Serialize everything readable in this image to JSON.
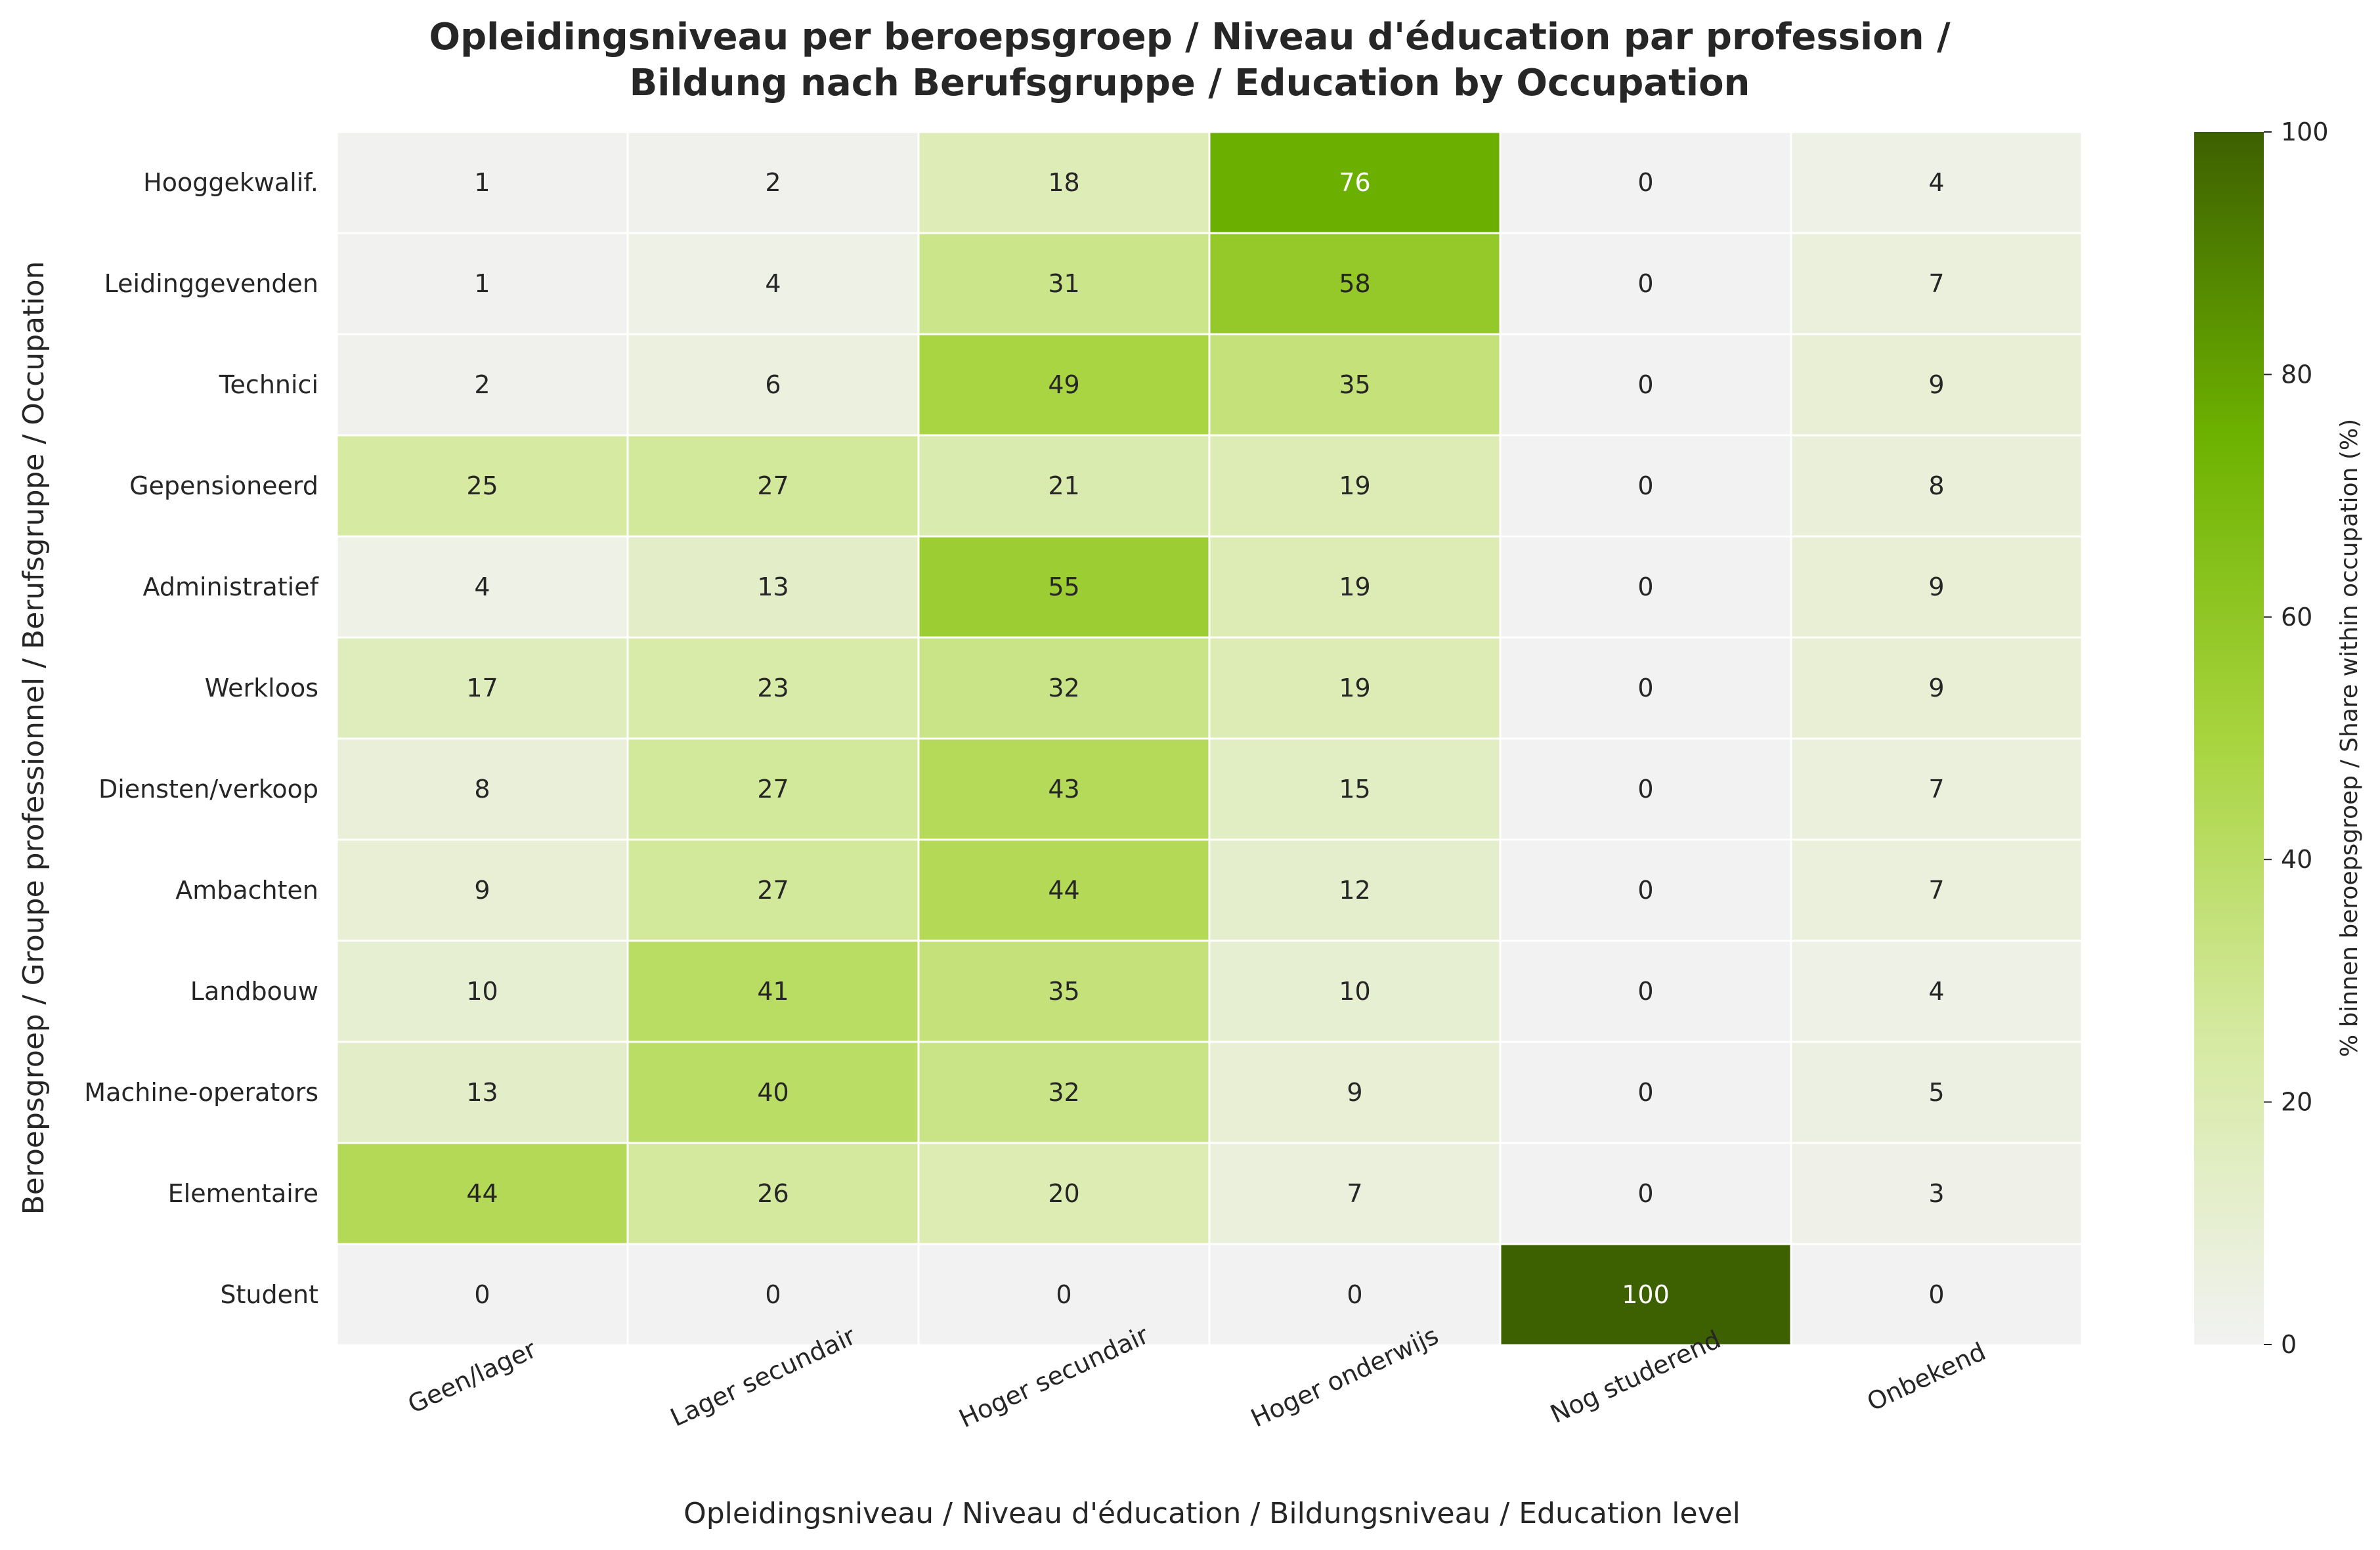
{
  "chart_data": {
    "type": "heatmap",
    "title": "Opleidingsniveau per beroepsgroep / Niveau d'éducation par profession / Bildung nach Berufsgruppe / Education by Occupation",
    "title_lines": [
      "Opleidingsniveau per beroepsgroep / Niveau d'éducation par profession /",
      "Bildung nach Berufsgruppe / Education by Occupation"
    ],
    "xlabel": "Opleidingsniveau / Niveau d'éducation / Bildungsniveau / Education level",
    "ylabel": "Beroepsgroep / Groupe professionnel / Berufsgruppe / Occupation",
    "columns": [
      "Geen/lager",
      "Lager secundair",
      "Hoger secundair",
      "Hoger onderwijs",
      "Nog studerend",
      "Onbekend"
    ],
    "rows": [
      "Hooggekwalif.",
      "Leidinggevenden",
      "Technici",
      "Gepensioneerd",
      "Administratief",
      "Werkloos",
      "Diensten/verkoop",
      "Ambachten",
      "Landbouw",
      "Machine-operators",
      "Elementaire",
      "Student"
    ],
    "values": [
      [
        1,
        2,
        18,
        76,
        0,
        4
      ],
      [
        1,
        4,
        31,
        58,
        0,
        7
      ],
      [
        2,
        6,
        49,
        35,
        0,
        9
      ],
      [
        25,
        27,
        21,
        19,
        0,
        8
      ],
      [
        4,
        13,
        55,
        19,
        0,
        9
      ],
      [
        17,
        23,
        32,
        19,
        0,
        9
      ],
      [
        8,
        27,
        43,
        15,
        0,
        7
      ],
      [
        9,
        27,
        44,
        12,
        0,
        7
      ],
      [
        10,
        41,
        35,
        10,
        0,
        4
      ],
      [
        13,
        40,
        32,
        9,
        0,
        5
      ],
      [
        44,
        26,
        20,
        7,
        0,
        3
      ],
      [
        0,
        0,
        0,
        0,
        100,
        0
      ]
    ],
    "colorbar": {
      "label": "% binnen beroepsgroep / Share within occupation (%)",
      "range": [
        0,
        100
      ],
      "ticks": [
        0,
        20,
        40,
        60,
        80,
        100
      ],
      "colors": [
        "#f2f2f2",
        "#d6eaa2",
        "#a8d43e",
        "#6db200",
        "#3d6000"
      ]
    }
  }
}
